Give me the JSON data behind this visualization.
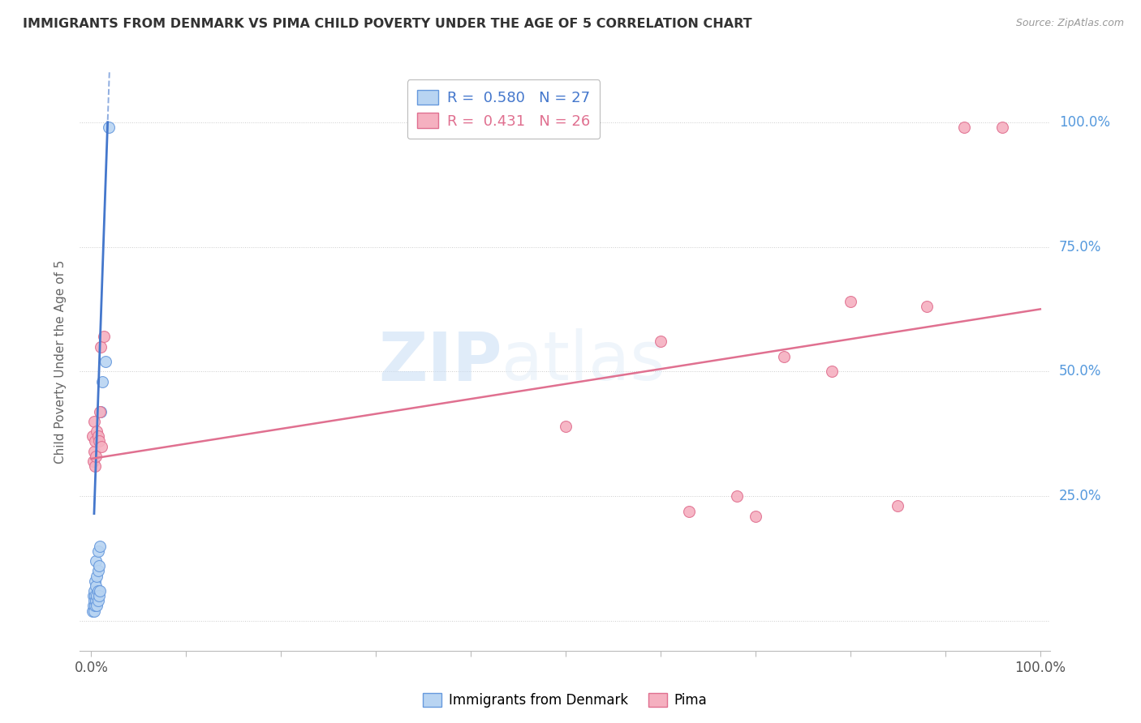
{
  "title": "IMMIGRANTS FROM DENMARK VS PIMA CHILD POVERTY UNDER THE AGE OF 5 CORRELATION CHART",
  "source": "Source: ZipAtlas.com",
  "ylabel": "Child Poverty Under the Age of 5",
  "legend_label_blue": "Immigrants from Denmark",
  "legend_label_pink": "Pima",
  "legend_r_blue": "0.580",
  "legend_n_blue": "27",
  "legend_r_pink": "0.431",
  "legend_n_pink": "26",
  "ytick_values": [
    0.0,
    0.25,
    0.5,
    0.75,
    1.0
  ],
  "ytick_labels": [
    "",
    "25.0%",
    "50.0%",
    "75.0%",
    "100.0%"
  ],
  "blue_fill": "#b8d4f2",
  "blue_edge": "#6699dd",
  "blue_line": "#4477cc",
  "pink_fill": "#f5b0c0",
  "pink_edge": "#e07090",
  "pink_line": "#e07090",
  "blue_scatter_x": [
    0.001,
    0.002,
    0.002,
    0.003,
    0.003,
    0.003,
    0.004,
    0.004,
    0.004,
    0.005,
    0.005,
    0.005,
    0.006,
    0.006,
    0.006,
    0.007,
    0.007,
    0.007,
    0.007,
    0.008,
    0.008,
    0.009,
    0.009,
    0.01,
    0.012,
    0.015,
    0.018
  ],
  "blue_scatter_y": [
    0.02,
    0.03,
    0.05,
    0.02,
    0.04,
    0.06,
    0.03,
    0.05,
    0.08,
    0.04,
    0.07,
    0.12,
    0.03,
    0.05,
    0.09,
    0.04,
    0.06,
    0.1,
    0.14,
    0.05,
    0.11,
    0.06,
    0.15,
    0.42,
    0.48,
    0.52,
    0.99
  ],
  "pink_scatter_x": [
    0.001,
    0.002,
    0.003,
    0.003,
    0.004,
    0.004,
    0.005,
    0.006,
    0.007,
    0.008,
    0.009,
    0.01,
    0.011,
    0.013,
    0.5,
    0.6,
    0.63,
    0.68,
    0.7,
    0.73,
    0.78,
    0.8,
    0.85,
    0.88,
    0.92,
    0.96
  ],
  "pink_scatter_y": [
    0.37,
    0.32,
    0.34,
    0.4,
    0.31,
    0.36,
    0.33,
    0.38,
    0.37,
    0.36,
    0.42,
    0.55,
    0.35,
    0.57,
    0.39,
    0.56,
    0.22,
    0.25,
    0.21,
    0.53,
    0.5,
    0.64,
    0.23,
    0.63,
    0.99,
    0.99
  ],
  "blue_trend_slope": 55.0,
  "blue_trend_intercept": 0.05,
  "pink_trend_slope": 0.3,
  "pink_trend_intercept": 0.325,
  "xtick_positions": [
    0.0,
    0.1,
    0.2,
    0.3,
    0.4,
    0.5,
    0.6,
    0.7,
    0.8,
    0.9,
    1.0
  ],
  "xtick_left_label": "0.0%",
  "xtick_right_label": "100.0%"
}
